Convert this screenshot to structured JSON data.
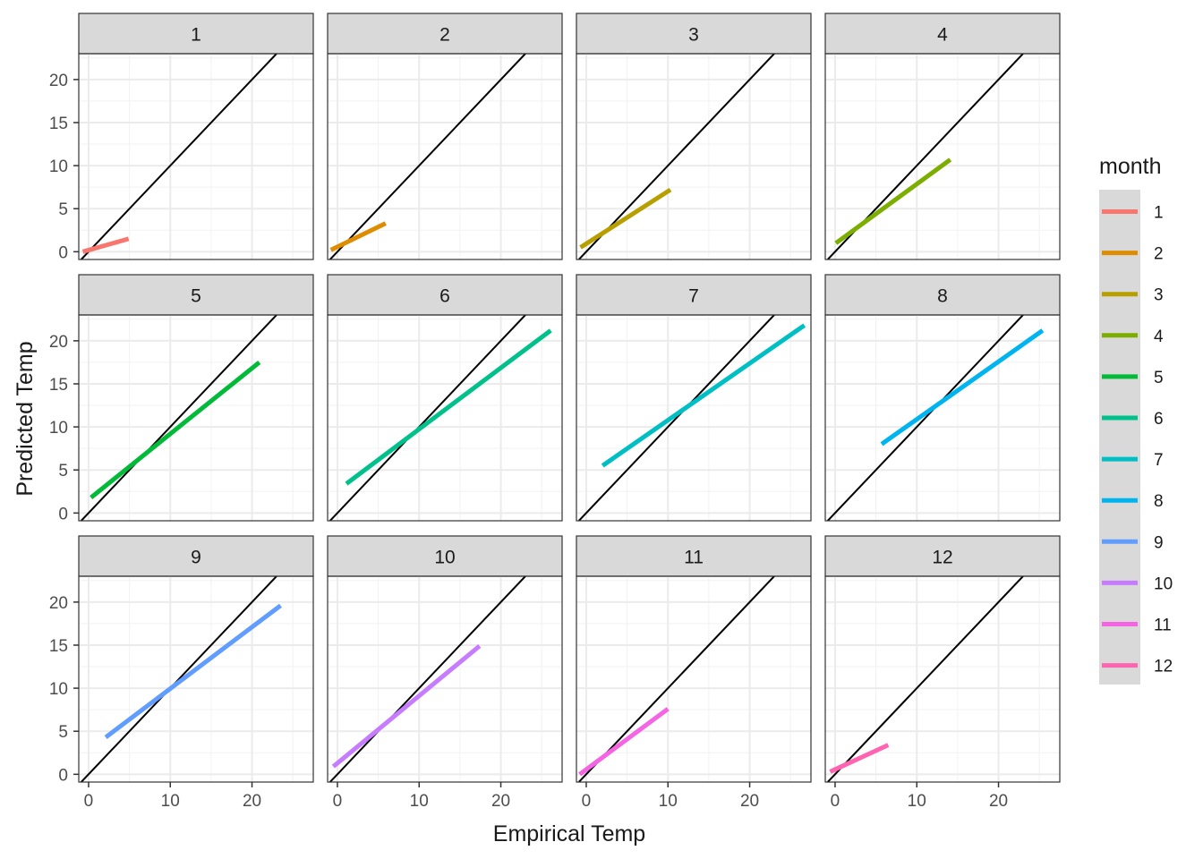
{
  "chart_data": {
    "type": "line",
    "facet_by": "month",
    "xlabel": "Empirical Temp",
    "ylabel": "Predicted Temp",
    "xlim": [
      -1.2,
      27.5
    ],
    "ylim": [
      -0.9,
      23
    ],
    "x_ticks": [
      0,
      10,
      20
    ],
    "y_ticks": [
      0,
      5,
      10,
      15,
      20
    ],
    "reference_line": {
      "kind": "identity",
      "slope": 1,
      "intercept": 0,
      "color": "#000000"
    },
    "grid": "on",
    "legend": {
      "title": "month",
      "position": "right"
    },
    "panels": [
      {
        "label": "1",
        "color": "#F8766D",
        "x": [
          -0.7,
          4.9
        ],
        "y": [
          0.0,
          1.5
        ]
      },
      {
        "label": "2",
        "color": "#DE8C00",
        "x": [
          -0.8,
          5.9
        ],
        "y": [
          0.2,
          3.3
        ]
      },
      {
        "label": "3",
        "color": "#B79F00",
        "x": [
          -0.7,
          10.3
        ],
        "y": [
          0.5,
          7.2
        ]
      },
      {
        "label": "4",
        "color": "#7CAE00",
        "x": [
          0.1,
          14.1
        ],
        "y": [
          1.0,
          10.7
        ]
      },
      {
        "label": "5",
        "color": "#00BA38",
        "x": [
          0.3,
          20.9
        ],
        "y": [
          1.8,
          17.5
        ]
      },
      {
        "label": "6",
        "color": "#00C08B",
        "x": [
          1.1,
          26.1
        ],
        "y": [
          3.4,
          21.2
        ]
      },
      {
        "label": "7",
        "color": "#00BFC4",
        "x": [
          2.0,
          26.7
        ],
        "y": [
          5.5,
          21.8
        ]
      },
      {
        "label": "8",
        "color": "#00B4F0",
        "x": [
          5.7,
          25.4
        ],
        "y": [
          8.0,
          21.2
        ]
      },
      {
        "label": "9",
        "color": "#619CFF",
        "x": [
          2.1,
          23.5
        ],
        "y": [
          4.3,
          19.6
        ]
      },
      {
        "label": "10",
        "color": "#C77CFF",
        "x": [
          -0.5,
          17.4
        ],
        "y": [
          0.9,
          14.9
        ]
      },
      {
        "label": "11",
        "color": "#F564E3",
        "x": [
          -0.8,
          10.0
        ],
        "y": [
          0.0,
          7.6
        ]
      },
      {
        "label": "12",
        "color": "#FF64B0",
        "x": [
          -0.6,
          6.5
        ],
        "y": [
          0.3,
          3.4
        ]
      }
    ]
  }
}
